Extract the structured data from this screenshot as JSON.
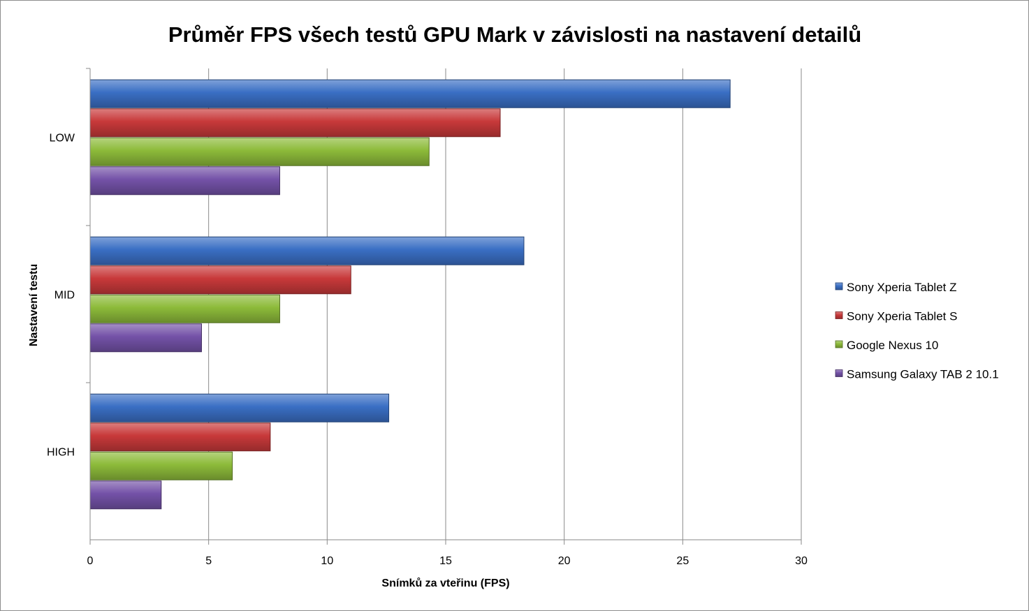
{
  "chart_data": {
    "type": "bar",
    "orientation": "horizontal",
    "title": "Průměr FPS všech testů GPU Mark v závislosti na nastavení detailů",
    "xlabel": "Snímků za vteřinu (FPS)",
    "ylabel": "Nastavení testu",
    "categories": [
      "LOW",
      "MID",
      "HIGH"
    ],
    "xlim": [
      0,
      30
    ],
    "xticks": [
      "0",
      "5",
      "10",
      "15",
      "20",
      "25",
      "30"
    ],
    "grid": true,
    "legend_position": "right",
    "series": [
      {
        "name": "Sony Xperia Tablet Z",
        "color": "#3a6fc4",
        "values": [
          27.0,
          18.3,
          12.6
        ]
      },
      {
        "name": "Sony Xperia Tablet S",
        "color": "#c8393a",
        "values": [
          17.3,
          11.0,
          7.6
        ]
      },
      {
        "name": "Google Nexus 10",
        "color": "#8dbb3a",
        "values": [
          14.3,
          8.0,
          6.0
        ]
      },
      {
        "name": "Samsung Galaxy TAB 2 10.1",
        "color": "#7452a8",
        "values": [
          8.0,
          4.7,
          3.0
        ]
      }
    ]
  }
}
